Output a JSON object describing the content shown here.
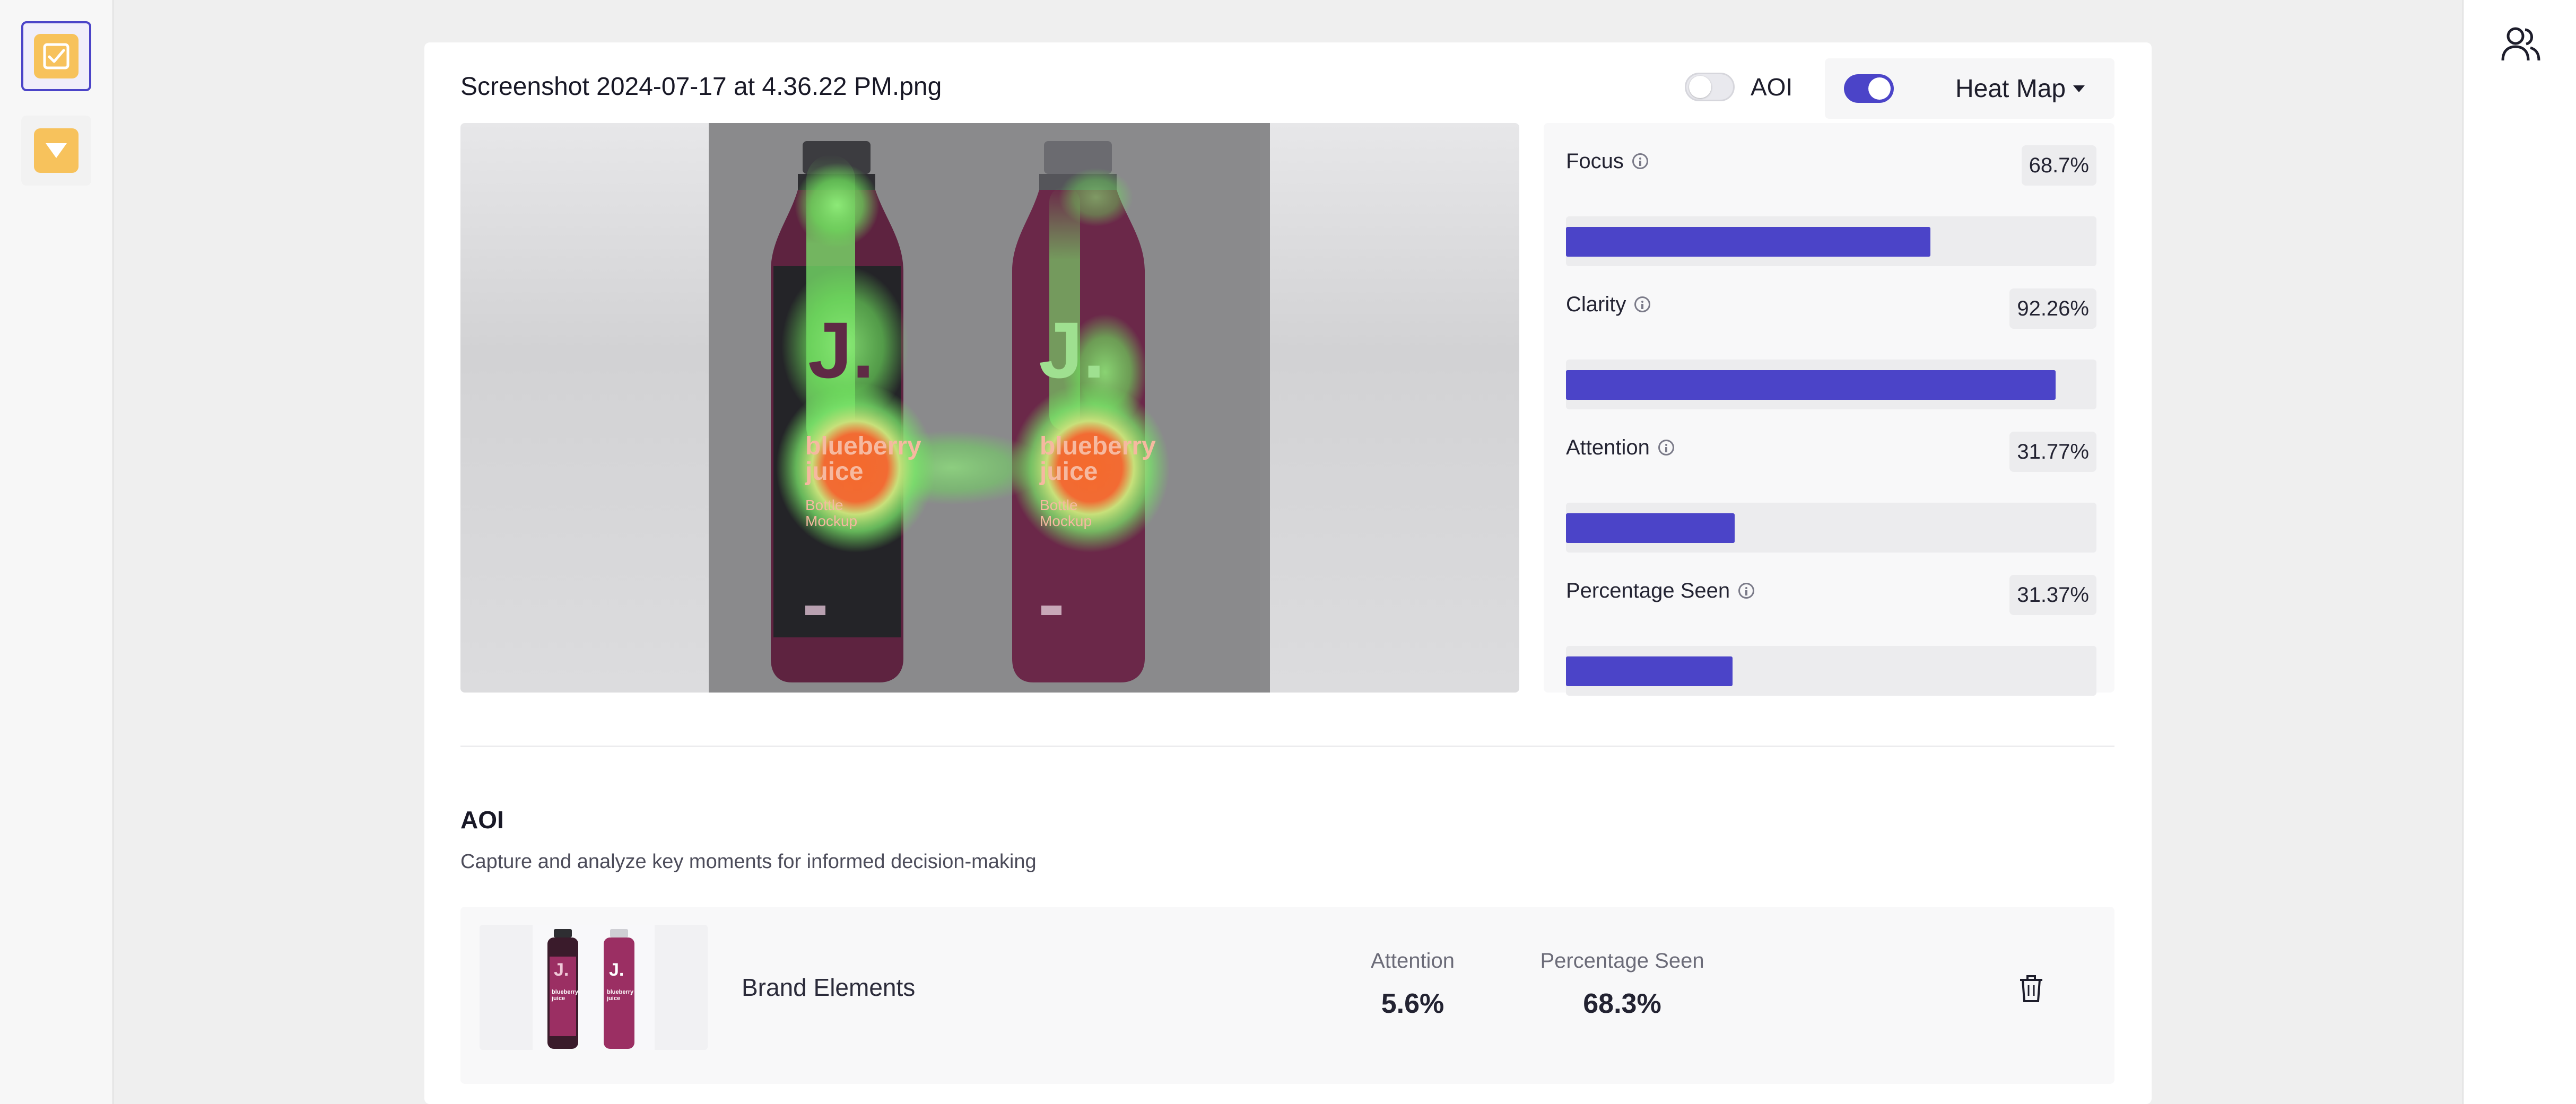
{
  "sidebar": {
    "items": [
      {
        "icon": "checkbox-icon",
        "active": true
      },
      {
        "icon": "dropdown-arrow-icon",
        "active": false
      }
    ]
  },
  "topbar": {
    "user_icon": "users-icon"
  },
  "header": {
    "file_name": "Screenshot 2024-07-17 at 4.36.22 PM.png",
    "aoi_toggle": {
      "label": "AOI",
      "on": false
    },
    "heatmap_toggle": {
      "on": true
    },
    "view_mode": {
      "selected": "Heat Map"
    }
  },
  "image": {
    "bottles": [
      {
        "brand": "J.",
        "text_line1": "blueberry",
        "text_line2": "juice",
        "text_line3": "Bottle",
        "text_line4": "Mockup"
      },
      {
        "brand": "J.",
        "text_line1": "blueberry",
        "text_line2": "juice",
        "text_line3": "Bottle",
        "text_line4": "Mockup"
      }
    ]
  },
  "metrics": [
    {
      "label": "Focus",
      "value": "68.7%",
      "percent": 68.7
    },
    {
      "label": "Clarity",
      "value": "92.26%",
      "percent": 92.26
    },
    {
      "label": "Attention",
      "value": "31.77%",
      "percent": 31.77
    },
    {
      "label": "Percentage Seen",
      "value": "31.37%",
      "percent": 31.37
    }
  ],
  "aoi": {
    "heading": "AOI",
    "subtitle": "Capture and analyze key moments for informed decision-making",
    "rows": [
      {
        "name": "Brand Elements",
        "attention_label": "Attention",
        "attention_value": "5.6%",
        "seen_label": "Percentage Seen",
        "seen_value": "68.3%",
        "thumbnail_text": {
          "brand": "J.",
          "line1": "blueberry",
          "line2": "juice"
        }
      }
    ]
  },
  "colors": {
    "accent": "#4b44c8",
    "rail_icon": "#f7c25c",
    "bottle": "#5e2340"
  }
}
